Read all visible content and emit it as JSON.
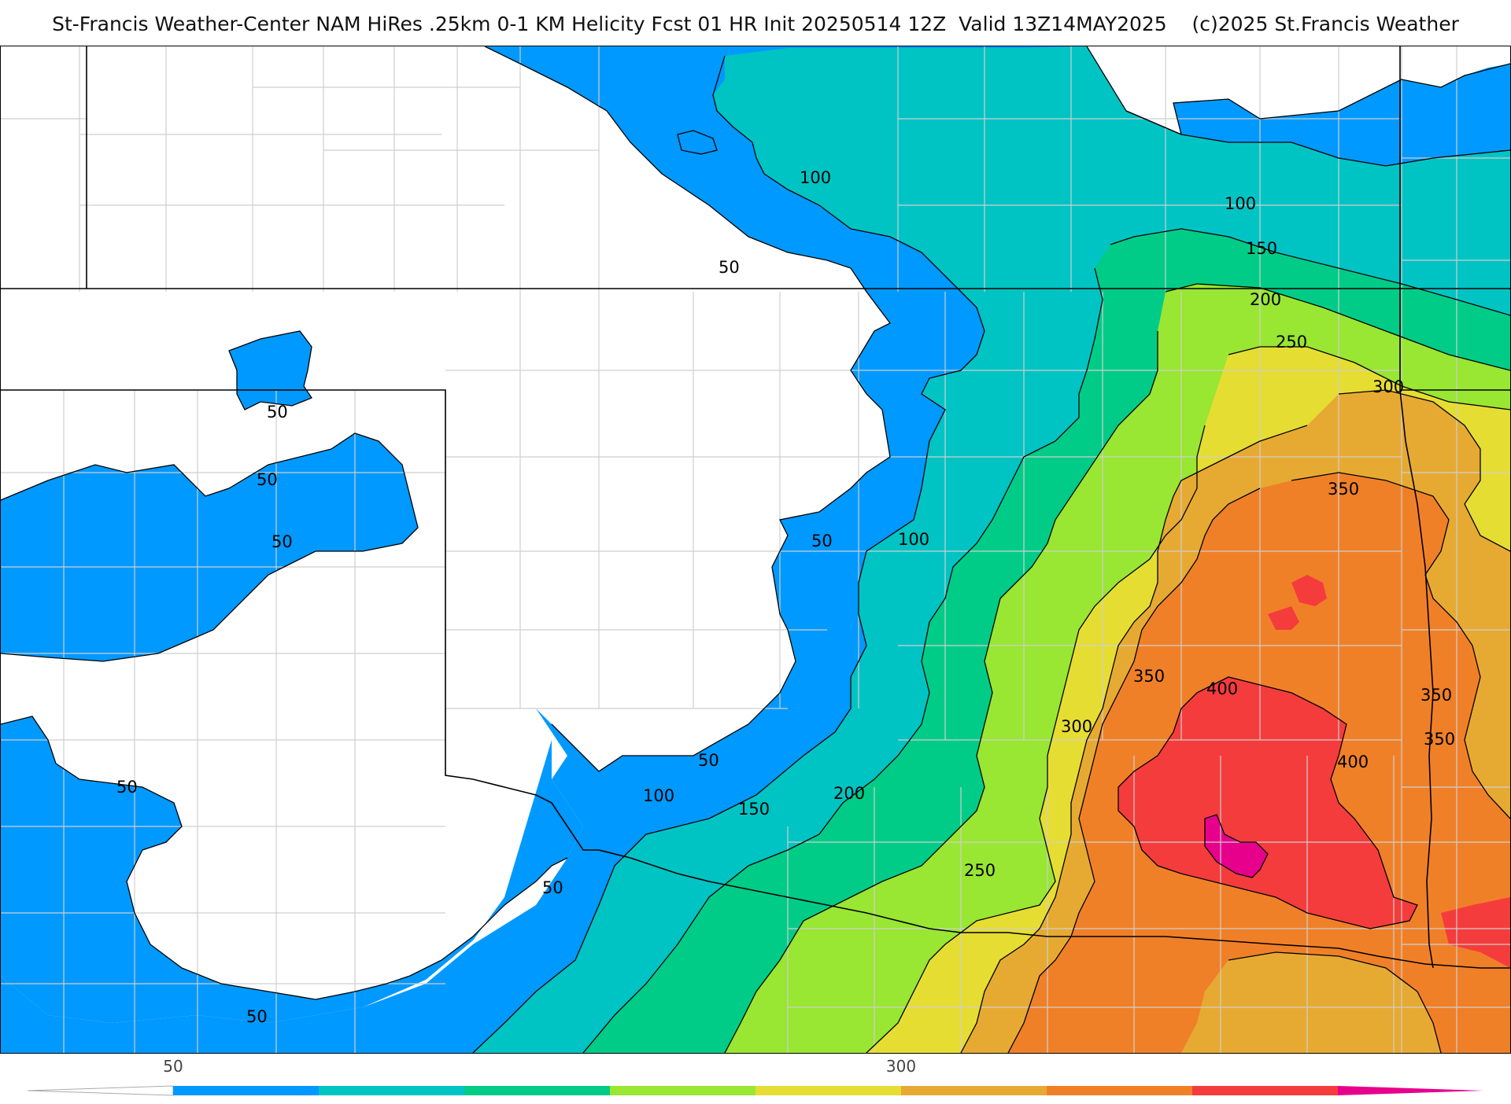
{
  "title": "St-Francis Weather-Center NAM HiRes .25km 0-1 KM Helicity Fcst 01 HR Init 20250514 12Z  Valid 13Z14MAY2025    (c)2025 St.Francis Weather",
  "colorbar": {
    "ticks": [
      {
        "value": 50,
        "label": "50"
      },
      {
        "value": 300,
        "label": "300"
      }
    ],
    "levels": [
      50,
      100,
      150,
      200,
      250,
      300,
      350,
      400,
      450
    ],
    "colors": [
      "#0099ff",
      "#00c4c4",
      "#00cc88",
      "#99e633",
      "#e6dd33",
      "#e6aa33",
      "#f08028",
      "#f53c3c",
      "#e6008c"
    ],
    "under_color": "#ffffff",
    "over_color": "#e6008c"
  },
  "contour_labels": [
    {
      "id": "lbl-1",
      "text": "100"
    },
    {
      "id": "lbl-2",
      "text": "50"
    },
    {
      "id": "lbl-3",
      "text": "100"
    },
    {
      "id": "lbl-4",
      "text": "150"
    },
    {
      "id": "lbl-5",
      "text": "200"
    },
    {
      "id": "lbl-6",
      "text": "250"
    },
    {
      "id": "lbl-7",
      "text": "300"
    },
    {
      "id": "lbl-8",
      "text": "350"
    },
    {
      "id": "lbl-9",
      "text": "50"
    },
    {
      "id": "lbl-10",
      "text": "50"
    },
    {
      "id": "lbl-11",
      "text": "50"
    },
    {
      "id": "lbl-12",
      "text": "50"
    },
    {
      "id": "lbl-13",
      "text": "100"
    },
    {
      "id": "lbl-14",
      "text": "350"
    },
    {
      "id": "lbl-15",
      "text": "400"
    },
    {
      "id": "lbl-16",
      "text": "300"
    },
    {
      "id": "lbl-17",
      "text": "350"
    },
    {
      "id": "lbl-18",
      "text": "350"
    },
    {
      "id": "lbl-19",
      "text": "400"
    },
    {
      "id": "lbl-20",
      "text": "50"
    },
    {
      "id": "lbl-21",
      "text": "50"
    },
    {
      "id": "lbl-22",
      "text": "100"
    },
    {
      "id": "lbl-23",
      "text": "150"
    },
    {
      "id": "lbl-24",
      "text": "200"
    },
    {
      "id": "lbl-25",
      "text": "250"
    },
    {
      "id": "lbl-26",
      "text": "50"
    },
    {
      "id": "lbl-27",
      "text": "50"
    }
  ]
}
